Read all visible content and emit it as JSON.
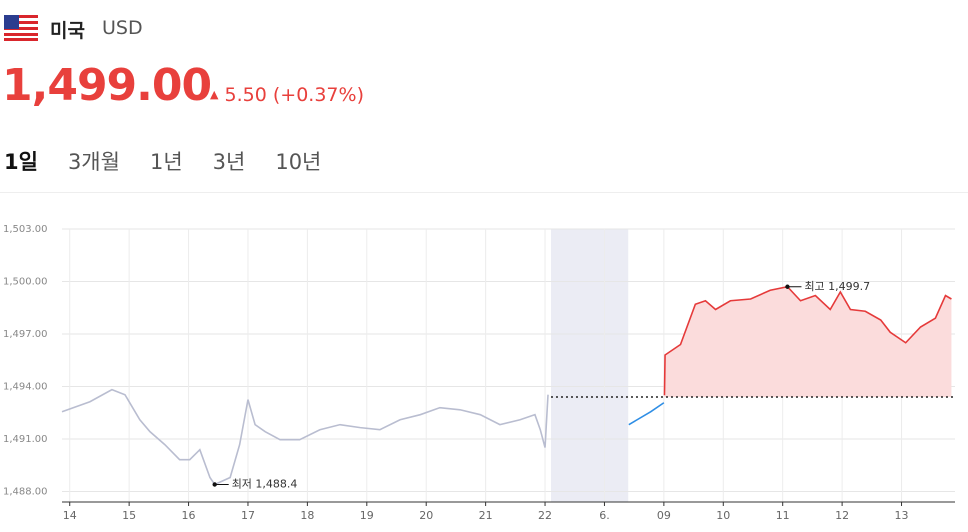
{
  "header": {
    "country": "미국",
    "currency": "USD",
    "price": "1,499.00",
    "change": "5.50",
    "change_pct": "(+0.37%)"
  },
  "tabs": [
    "1일",
    "3개월",
    "1년",
    "3년",
    "10년"
  ],
  "chart_data": {
    "type": "line",
    "xlim": [
      -0.13,
      14.9
    ],
    "ylim": [
      1487.4,
      1503
    ],
    "yticks": [
      {
        "value": 1488,
        "label": "1,488.00"
      },
      {
        "value": 1491,
        "label": "1,491.00"
      },
      {
        "value": 1494,
        "label": "1,494.00"
      },
      {
        "value": 1497,
        "label": "1,497.00"
      },
      {
        "value": 1500,
        "label": "1,500.00"
      },
      {
        "value": 1503,
        "label": "1,503.00"
      }
    ],
    "xticks": [
      {
        "value": 0,
        "label": "14"
      },
      {
        "value": 1,
        "label": "15"
      },
      {
        "value": 2,
        "label": "16"
      },
      {
        "value": 3,
        "label": "17"
      },
      {
        "value": 4,
        "label": "18"
      },
      {
        "value": 5,
        "label": "19"
      },
      {
        "value": 6,
        "label": "20"
      },
      {
        "value": 7,
        "label": "21"
      },
      {
        "value": 8,
        "label": "22"
      },
      {
        "value": 9,
        "label": "6."
      },
      {
        "value": 10,
        "label": "09"
      },
      {
        "value": 11,
        "label": "10"
      },
      {
        "value": 12,
        "label": "11"
      },
      {
        "value": 13,
        "label": "12"
      },
      {
        "value": 14,
        "label": "13"
      }
    ],
    "grid": true,
    "shaded_xrange": [
      8.1,
      9.4
    ],
    "baseline": 1493.4,
    "series": [
      {
        "color": "#b9bdd0",
        "x": [
          -0.13,
          0.34,
          0.71,
          0.93,
          1.18,
          1.35,
          1.6,
          1.85,
          2.02,
          2.19,
          2.36,
          2.44,
          2.7,
          2.86,
          3.0,
          3.12,
          3.29,
          3.54,
          3.87,
          4.21,
          4.55,
          4.89,
          5.22,
          5.56,
          5.9,
          6.23,
          6.57,
          6.91,
          7.24,
          7.58,
          7.83,
          7.92,
          8.0,
          8.05
        ],
        "values": [
          1492.56,
          1493.13,
          1493.82,
          1493.53,
          1492.1,
          1491.42,
          1490.68,
          1489.82,
          1489.82,
          1490.39,
          1488.8,
          1488.4,
          1488.8,
          1490.68,
          1493.25,
          1491.82,
          1491.42,
          1490.96,
          1490.96,
          1491.53,
          1491.82,
          1491.65,
          1491.53,
          1492.1,
          1492.39,
          1492.79,
          1492.67,
          1492.39,
          1491.82,
          1492.1,
          1492.39,
          1491.53,
          1490.51,
          1493.53
        ]
      },
      {
        "color": "#2f8ee5",
        "x": [
          9.41,
          9.78,
          10.0
        ],
        "values": [
          1491.82,
          1492.56,
          1493.07
        ]
      },
      {
        "color": "#e53a3a",
        "area_color": "#fbdcdc",
        "x": [
          10.01,
          10.02,
          10.28,
          10.53,
          10.7,
          10.87,
          11.12,
          11.46,
          11.79,
          12.08,
          12.3,
          12.55,
          12.8,
          12.97,
          13.14,
          13.39,
          13.65,
          13.81,
          14.07,
          14.32,
          14.57,
          14.74,
          14.84
        ],
        "values": [
          1493.5,
          1495.8,
          1496.4,
          1498.7,
          1498.9,
          1498.4,
          1498.9,
          1499.0,
          1499.5,
          1499.7,
          1498.9,
          1499.2,
          1498.4,
          1499.4,
          1498.4,
          1498.3,
          1497.8,
          1497.1,
          1496.5,
          1497.4,
          1497.9,
          1499.2,
          1499.0
        ]
      }
    ],
    "annotations": [
      {
        "label": "최고 1,499.7",
        "x": 12.08,
        "y": 1499.7
      },
      {
        "label": "최저 1,488.4",
        "x": 2.44,
        "y": 1488.4
      }
    ]
  }
}
